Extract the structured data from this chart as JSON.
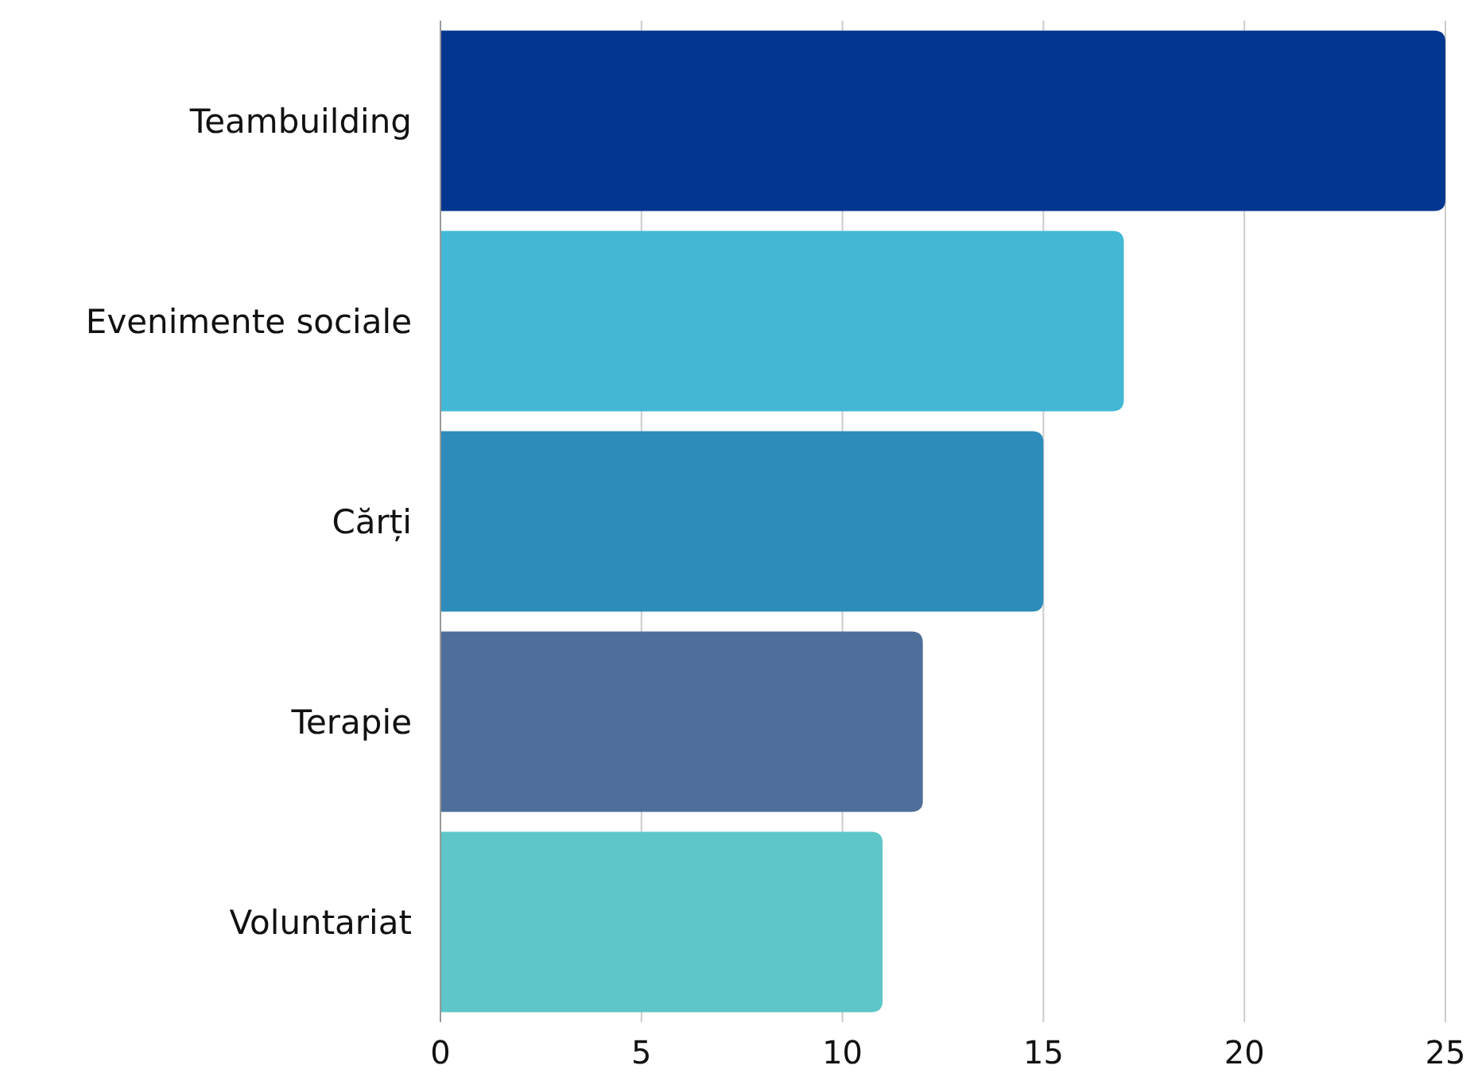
{
  "chart_data": {
    "type": "bar",
    "orientation": "horizontal",
    "categories": [
      "Teambuilding",
      "Evenimente sociale",
      "Cărți",
      "Terapie",
      "Voluntariat"
    ],
    "values": [
      25,
      17,
      15,
      12,
      11
    ],
    "colors": [
      "#03378f",
      "#43b8d6",
      "#2d8cba",
      "#4f6e99",
      "#5ec6c8"
    ],
    "xlim": [
      0,
      25
    ],
    "xticks": [
      0,
      5,
      10,
      15,
      20,
      25
    ],
    "grid": "x"
  }
}
